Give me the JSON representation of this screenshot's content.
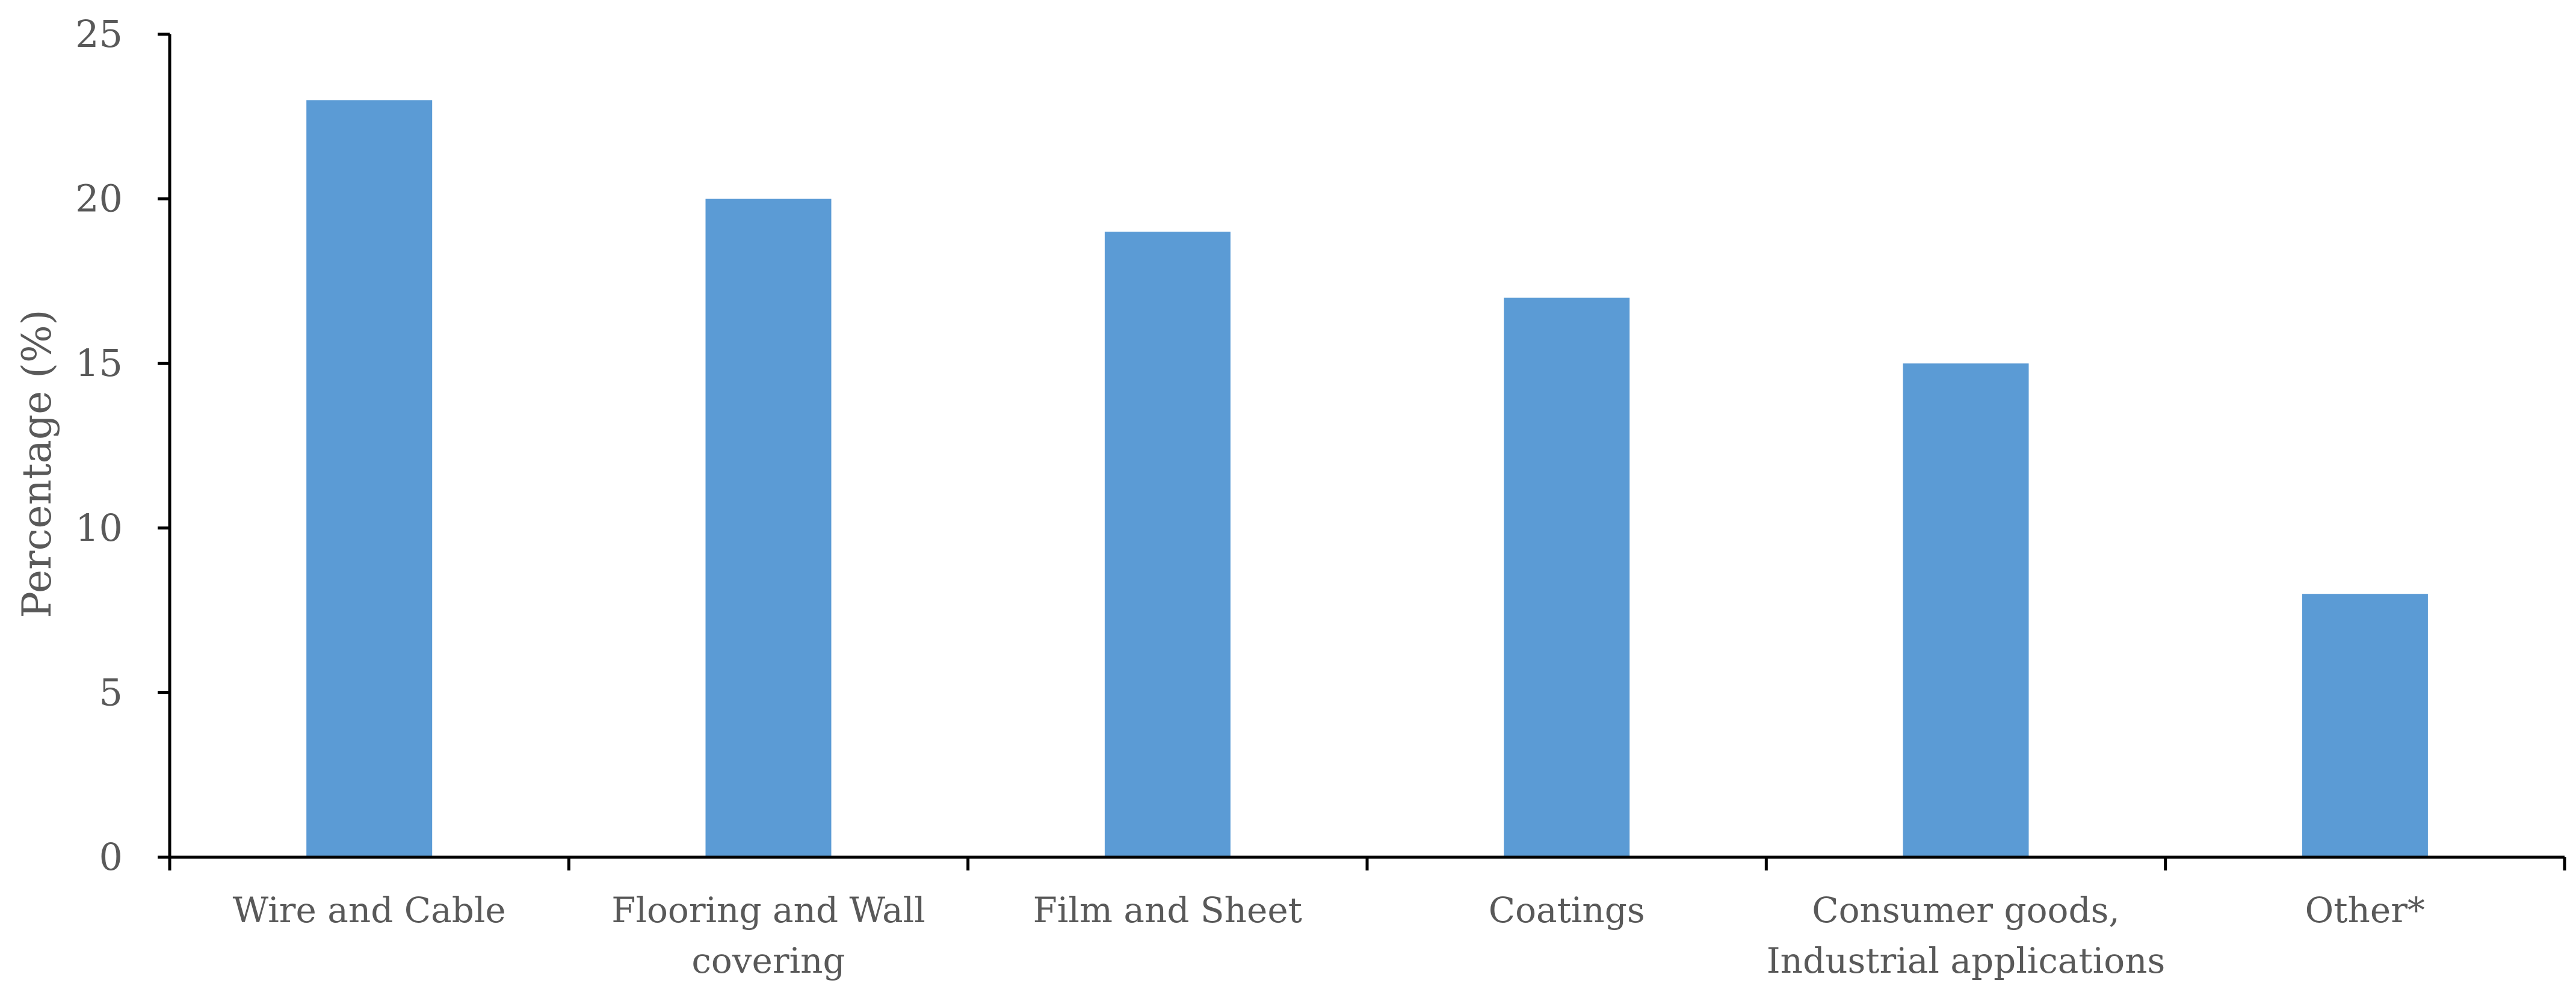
{
  "chart_data": {
    "type": "bar",
    "categories": [
      [
        "Wire and Cable"
      ],
      [
        "Flooring and Wall",
        "covering"
      ],
      [
        "Film and Sheet"
      ],
      [
        "Coatings"
      ],
      [
        "Consumer goods,",
        "Industrial applications"
      ],
      [
        "Other*"
      ]
    ],
    "values": [
      23,
      20,
      19,
      17,
      15,
      8
    ],
    "title": "",
    "xlabel": "",
    "ylabel": "Percentage (%)",
    "ylim": [
      0,
      25
    ],
    "yticks": [
      "0",
      "5",
      "10",
      "15",
      "20",
      "25"
    ],
    "grid": false,
    "legend": "none",
    "colors": {
      "bar": "#5B9BD5",
      "axis": "#000000",
      "text": "#595959"
    }
  }
}
